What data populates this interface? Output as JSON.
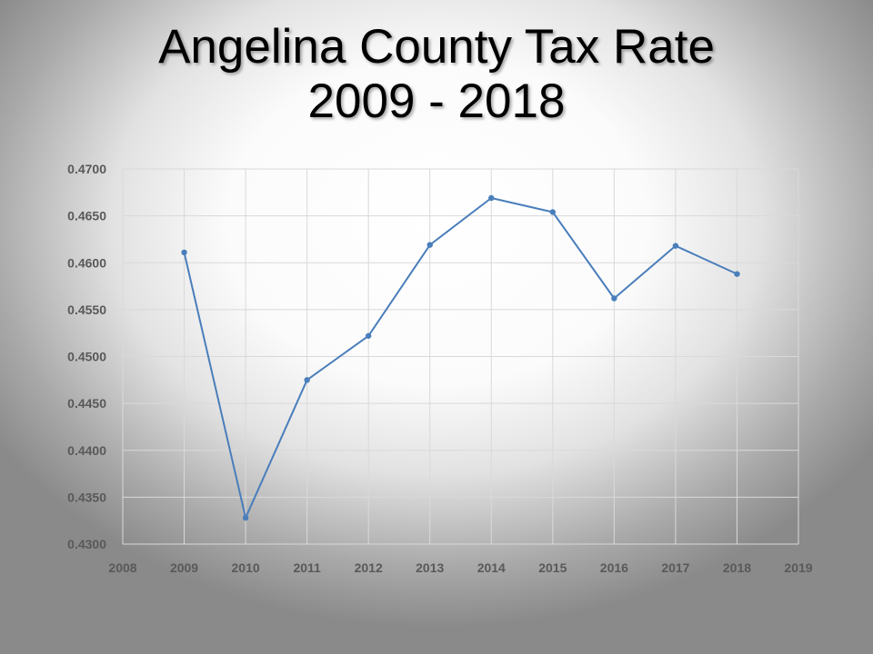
{
  "title_lines": [
    "Angelina County Tax Rate",
    "2009 - 2018"
  ],
  "chart_data": {
    "type": "scatter",
    "title": "Angelina County Tax Rate 2009 - 2018",
    "xlabel": "",
    "ylabel": "",
    "x": [
      2009,
      2010,
      2011,
      2012,
      2013,
      2014,
      2015,
      2016,
      2017,
      2018
    ],
    "series": [
      {
        "values": [
          0.4611,
          0.4328,
          0.4475,
          0.4522,
          0.4619,
          0.4669,
          0.4654,
          0.4562,
          0.4618,
          0.4588
        ]
      }
    ],
    "xlim": [
      2008,
      2019
    ],
    "ylim": [
      0.43,
      0.47
    ],
    "x_ticks": [
      "2008",
      "2009",
      "2010",
      "2011",
      "2012",
      "2013",
      "2014",
      "2015",
      "2016",
      "2017",
      "2018",
      "2019"
    ],
    "y_ticks": [
      "0.4300",
      "0.4350",
      "0.4400",
      "0.4450",
      "0.4500",
      "0.4550",
      "0.4600",
      "0.4650",
      "0.4700"
    ],
    "grid": true,
    "line_color": "#4a7ebb",
    "grid_color": "#d9d9d9"
  }
}
